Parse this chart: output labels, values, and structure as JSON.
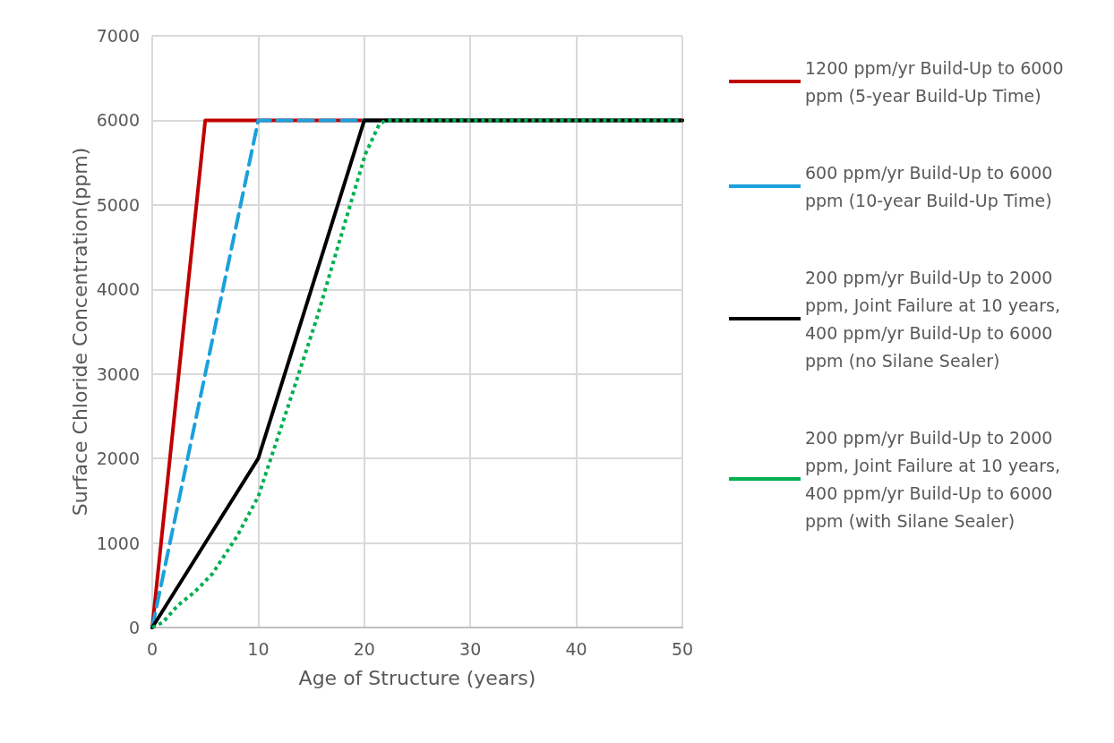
{
  "chart_data": {
    "type": "line",
    "xlabel": "Age of Structure (years)",
    "ylabel": "Surface Chloride Concentration(ppm)",
    "xlim": [
      0,
      50
    ],
    "xticks": [
      0,
      10,
      20,
      30,
      40,
      50
    ],
    "ylim": [
      0,
      7000
    ],
    "yticks": [
      0,
      1000,
      2000,
      3000,
      4000,
      5000,
      6000,
      7000
    ],
    "grid": true,
    "legend": "right",
    "marker": "none",
    "series": [
      {
        "name": "1200 ppm/yr Build-Up to 6000 ppm (5-year Build-Up Time)",
        "color": "#c00000",
        "line_style": "solid",
        "x": [
          0,
          5,
          50
        ],
        "values": [
          0,
          6000,
          6000
        ]
      },
      {
        "name": "600 ppm/yr Build-Up to 6000 ppm (10-year Build-Up Time)",
        "color": "#1ba1db",
        "line_style": "dashed",
        "x": [
          0,
          10,
          50
        ],
        "values": [
          0,
          6000,
          6000
        ]
      },
      {
        "name": "200 ppm/yr Build-Up to 2000 ppm, Joint Failure at 10 years, 400 ppm/yr Build-Up to 6000 ppm (no Silane Sealer)",
        "color": "#000000",
        "line_style": "solid",
        "x": [
          0,
          10,
          20,
          50
        ],
        "values": [
          0,
          2000,
          6000,
          6000
        ]
      },
      {
        "name": "200 ppm/yr Build-Up to 2000 ppm, Joint Failure at 10 years, 400 ppm/yr Build-Up to 6000 ppm (with Silane Sealer)",
        "color": "#00b050",
        "line_style": "dotted",
        "x": [
          0,
          1,
          2.4,
          4,
          5.7,
          8,
          10,
          12.9,
          15.5,
          18.2,
          20.1,
          21.4,
          22,
          50
        ],
        "values": [
          0,
          60,
          260,
          420,
          640,
          1080,
          1550,
          2650,
          3650,
          4800,
          5600,
          5950,
          6000,
          6000
        ]
      }
    ]
  }
}
